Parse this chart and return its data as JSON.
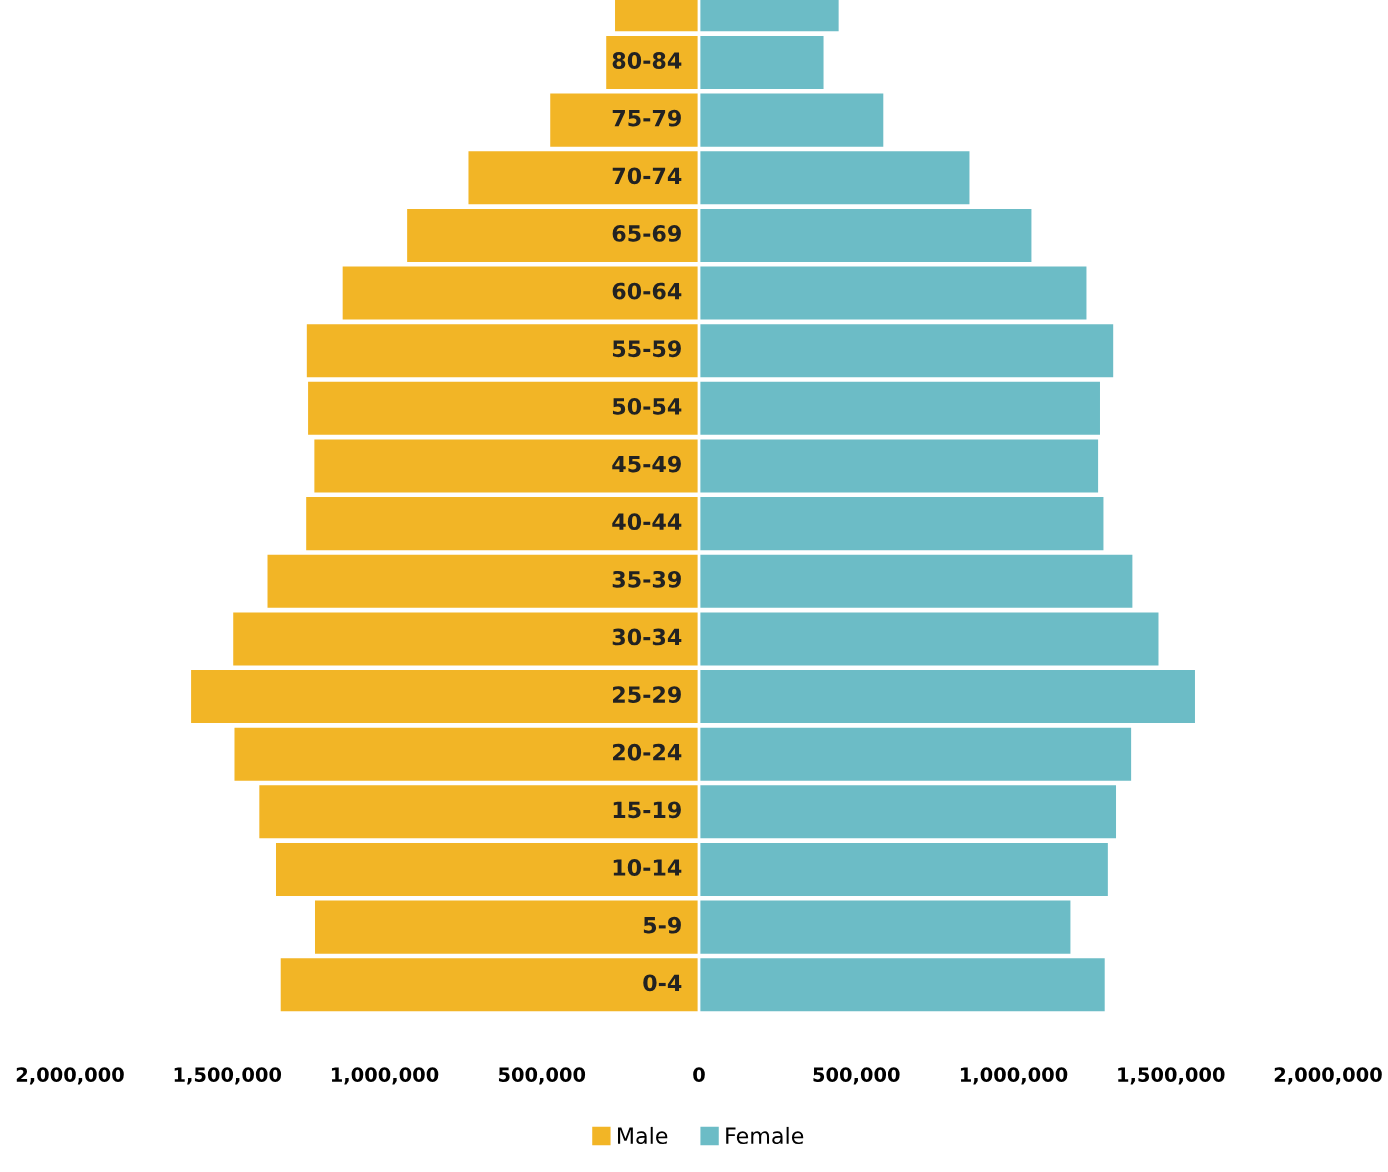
{
  "chart_data": {
    "type": "bar",
    "orientation": "horizontal",
    "categories": [
      null,
      "80-84",
      "75-79",
      "70-74",
      "65-69",
      "60-64",
      "55-59",
      "50-54",
      "45-49",
      "40-44",
      "35-39",
      "30-34",
      "25-29",
      "20-24",
      "15-19",
      "10-14",
      "5-9",
      "0-4"
    ],
    "series": [
      {
        "name": "Male",
        "color": "#f2b526",
        "values": [
          -267000,
          -295000,
          -473000,
          -733000,
          -928000,
          -1133000,
          -1247000,
          -1243000,
          -1223000,
          -1249000,
          -1372000,
          -1481000,
          -1615000,
          -1477000,
          -1398000,
          -1345000,
          -1221000,
          -1330000
        ]
      },
      {
        "name": "Female",
        "color": "#6cbcc6",
        "values": [
          444000,
          396000,
          586000,
          860000,
          1057000,
          1232000,
          1317000,
          1275000,
          1269000,
          1286000,
          1378000,
          1461000,
          1577000,
          1374000,
          1326000,
          1300000,
          1181000,
          1290000
        ]
      }
    ],
    "xlim": [
      -2000000,
      2000000
    ],
    "xticks": [
      {
        "value": -2000000,
        "label": "2,000,000"
      },
      {
        "value": -1500000,
        "label": "1,500,000"
      },
      {
        "value": -1000000,
        "label": "1,000,000"
      },
      {
        "value": -500000,
        "label": "500,000"
      },
      0,
      {
        "value": 500000,
        "label": "500,000"
      },
      {
        "value": 1000000,
        "label": "1,000,000"
      },
      {
        "value": 1500000,
        "label": "1,500,000"
      },
      {
        "value": 2000000,
        "label": "2,000,000"
      }
    ],
    "grid": false,
    "stacked": true,
    "legend": "bottom"
  }
}
